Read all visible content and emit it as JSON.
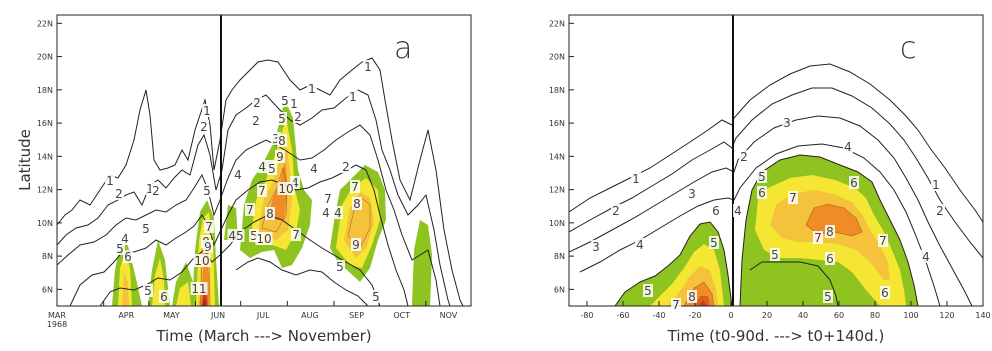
{
  "panels": [
    {
      "panel_letter": "a",
      "xlabel": "Time (March ---> November)",
      "ylabel": "Latitude",
      "x_ticks": [
        "MAR",
        "APR",
        "MAY",
        "JUN",
        "JUL",
        "AUG",
        "SEP",
        "OCT",
        "NOV"
      ],
      "x_tick_year": "1968",
      "y_ticks": [
        "6N",
        "8N",
        "10N",
        "12N",
        "14N",
        "16N",
        "18N",
        "20N",
        "22N"
      ]
    },
    {
      "panel_letter": "c",
      "xlabel": "Time (t0-90d. ---> t0+140d.)",
      "ylabel": "",
      "x_ticks": [
        "-80",
        "-60",
        "-40",
        "-20",
        "0",
        "20",
        "40",
        "60",
        "80",
        "100",
        "120",
        "140"
      ],
      "y_ticks": [
        "6N",
        "8N",
        "10N",
        "12N",
        "14N",
        "16N",
        "18N",
        "20N",
        "22N"
      ]
    }
  ],
  "contour_labels_a": [
    "1",
    "1",
    "1",
    "1",
    "1",
    "1",
    "1",
    "2",
    "2",
    "2",
    "2",
    "2",
    "2",
    "2",
    "3",
    "4",
    "4",
    "4",
    "4",
    "4",
    "4",
    "45",
    "45",
    "5",
    "5",
    "5",
    "5",
    "5",
    "5",
    "5",
    "5",
    "5",
    "5",
    "6",
    "6",
    "7",
    "7",
    "7",
    "7",
    "7",
    "7",
    "8",
    "8",
    "8",
    "8",
    "9",
    "9",
    "9",
    "10",
    "10",
    "10",
    "11"
  ],
  "contour_labels_c": [
    "1",
    "1",
    "2",
    "2",
    "2",
    "3",
    "3",
    "3",
    "4",
    "4",
    "4",
    "4",
    "5",
    "5",
    "5",
    "5",
    "5",
    "6",
    "6",
    "6",
    "6",
    "6",
    "7",
    "7",
    "7",
    "7",
    "8",
    "8"
  ],
  "chart_data": [
    {
      "type": "heatmap",
      "title": "a",
      "xlabel": "Time (March ---> November)",
      "ylabel": "Latitude",
      "x_range": [
        "1968-03-01",
        "1968-11-30"
      ],
      "y_range_deg_N": [
        5,
        22.5
      ],
      "onset_marker": "1968-06-24",
      "levels": [
        1,
        2,
        3,
        4,
        5,
        6,
        7,
        8,
        9,
        10,
        11
      ],
      "fill_colors": {
        "5": "#8fc31f",
        "6": "#f4e633",
        "7": "#f5c33b",
        "8": "#f08c25",
        "9": "#d95f1e",
        "10": "#c43c24",
        "11": "#9b1b1b"
      }
    },
    {
      "type": "heatmap",
      "title": "c",
      "xlabel": "Time (t0-90d. ---> t0+140d.)",
      "x_range_days": [
        -90,
        140
      ],
      "y_range_deg_N": [
        5,
        22.5
      ],
      "onset_marker_day": 0,
      "levels": [
        1,
        2,
        3,
        4,
        5,
        6,
        7,
        8
      ],
      "fill_colors": {
        "5": "#8fc31f",
        "6": "#f4e633",
        "7": "#f5c33b",
        "8": "#f08c25"
      }
    }
  ]
}
